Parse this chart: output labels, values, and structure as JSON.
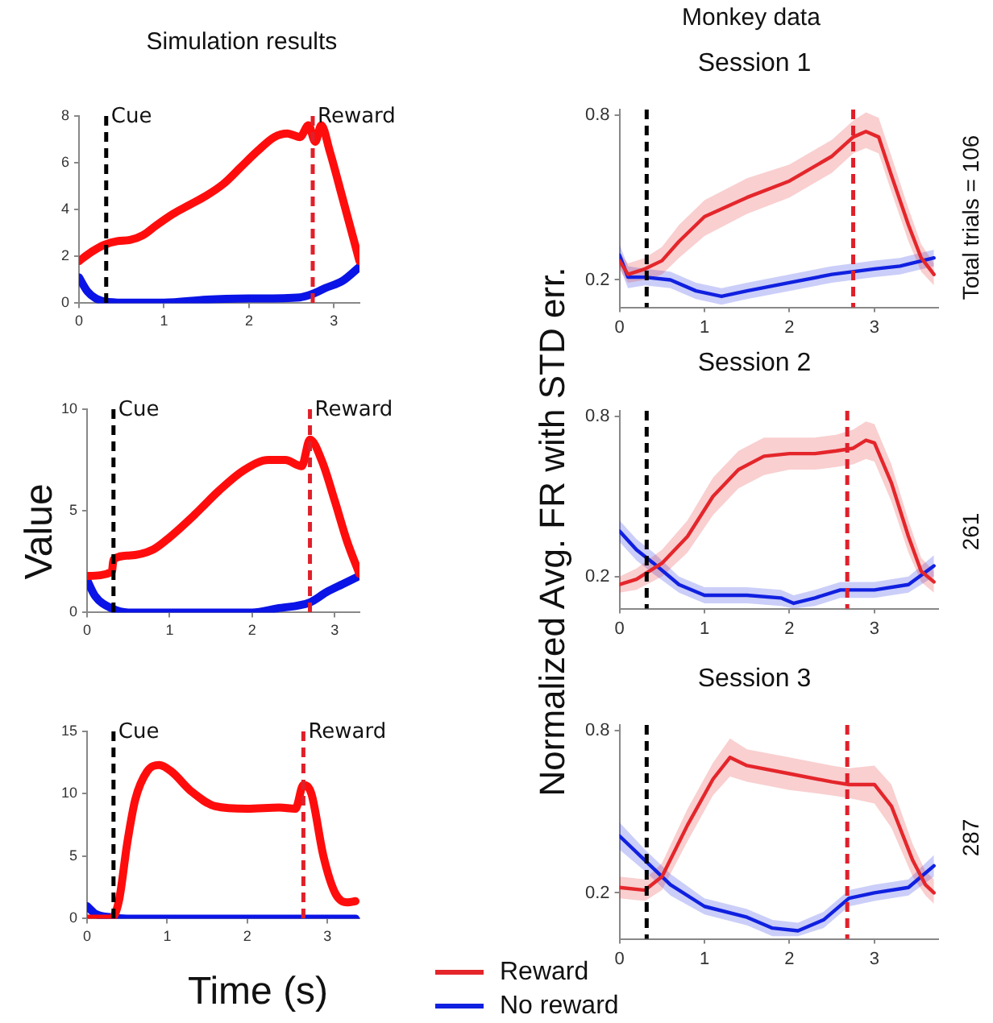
{
  "chart_data": [
    {
      "type": "line",
      "title": "Simulation results",
      "xlim": [
        0,
        3.3
      ],
      "xticks": [
        0,
        1,
        2,
        3
      ],
      "ylim": [
        0,
        8
      ],
      "yticks": [
        0,
        2,
        4,
        6,
        8
      ],
      "ref_lines": [
        {
          "axis": "x",
          "value": 0.32,
          "label": "Cue",
          "color": "#000000",
          "line_style": "dashed"
        },
        {
          "axis": "x",
          "value": 2.75,
          "label": "Reward",
          "color": "#e0202a",
          "line_style": "dashed"
        }
      ],
      "series": [
        {
          "color": "#ff0d0d",
          "x": [
            0,
            0.15,
            0.3,
            0.45,
            0.6,
            0.75,
            0.9,
            1.1,
            1.3,
            1.5,
            1.7,
            1.9,
            2.1,
            2.3,
            2.45,
            2.6,
            2.7,
            2.78,
            2.85,
            2.95,
            3.1,
            3.3
          ],
          "values": [
            1.8,
            2.2,
            2.5,
            2.65,
            2.7,
            2.9,
            3.3,
            3.8,
            4.2,
            4.6,
            5.1,
            5.8,
            6.5,
            7.1,
            7.25,
            7.1,
            7.6,
            6.9,
            7.6,
            6.5,
            4.5,
            1.8
          ]
        },
        {
          "color": "#0a14e6",
          "x": [
            0,
            0.1,
            0.2,
            0.35,
            0.6,
            1.0,
            1.5,
            2.0,
            2.6,
            2.75,
            2.9,
            3.1,
            3.3
          ],
          "values": [
            1.1,
            0.5,
            0.2,
            0.05,
            0.02,
            0.02,
            0.15,
            0.2,
            0.25,
            0.4,
            0.65,
            0.95,
            1.55
          ]
        }
      ]
    },
    {
      "type": "line",
      "ylabel": "Value",
      "xlim": [
        0,
        3.3
      ],
      "xticks": [
        0,
        1,
        2,
        3
      ],
      "ylim": [
        0,
        10
      ],
      "yticks": [
        0,
        5,
        10
      ],
      "ref_lines": [
        {
          "axis": "x",
          "value": 0.32,
          "label": "Cue",
          "color": "#000000",
          "line_style": "dashed"
        },
        {
          "axis": "x",
          "value": 2.7,
          "label": "Reward",
          "color": "#e0202a",
          "line_style": "dashed"
        }
      ],
      "series": [
        {
          "color": "#ff0d0d",
          "x": [
            0,
            0.3,
            0.32,
            0.5,
            0.8,
            1.0,
            1.3,
            1.6,
            1.9,
            2.2,
            2.4,
            2.6,
            2.7,
            2.85,
            3.0,
            3.15,
            3.3
          ],
          "values": [
            1.8,
            2.0,
            2.6,
            2.8,
            3.1,
            3.7,
            4.8,
            6.0,
            7.0,
            7.5,
            7.5,
            7.2,
            8.5,
            7.4,
            5.5,
            3.5,
            1.9
          ]
        },
        {
          "color": "#0a14e6",
          "x": [
            0,
            0.1,
            0.3,
            0.5,
            1.0,
            2.0,
            2.3,
            2.7,
            2.9,
            3.1,
            3.3
          ],
          "values": [
            1.6,
            0.8,
            0.2,
            0,
            0,
            0,
            0.2,
            0.5,
            1.0,
            1.4,
            1.8
          ]
        }
      ]
    },
    {
      "type": "line",
      "xlabel": "Time (s)",
      "xlim": [
        0,
        3.4
      ],
      "xticks": [
        0,
        1,
        2,
        3
      ],
      "ylim": [
        0,
        15
      ],
      "yticks": [
        0,
        5,
        10,
        15
      ],
      "ref_lines": [
        {
          "axis": "x",
          "value": 0.33,
          "label": "Cue",
          "color": "#000000",
          "line_style": "dashed"
        },
        {
          "axis": "x",
          "value": 2.7,
          "label": "Reward",
          "color": "#e0202a",
          "line_style": "dashed"
        }
      ],
      "series": [
        {
          "color": "#ff0d0d",
          "x": [
            0,
            0.3,
            0.4,
            0.5,
            0.6,
            0.75,
            0.9,
            1.05,
            1.3,
            1.6,
            2.0,
            2.4,
            2.6,
            2.7,
            2.8,
            2.95,
            3.1,
            3.25,
            3.35
          ],
          "values": [
            0,
            0,
            1.5,
            6,
            9.5,
            11.8,
            12.3,
            11.8,
            10.2,
            9.0,
            8.8,
            8.9,
            8.8,
            10.7,
            10.0,
            5,
            2.0,
            1.3,
            1.4
          ]
        },
        {
          "color": "#0a14e6",
          "x": [
            0,
            0.1,
            0.3,
            0.5,
            3.35
          ],
          "values": [
            1.0,
            0.4,
            0.1,
            0,
            0
          ]
        }
      ]
    },
    {
      "type": "line",
      "title": "Monkey data",
      "subtitle": "Session 1",
      "annotations": [
        "Total trials = 106"
      ],
      "xlim": [
        0,
        3.75
      ],
      "xticks": [
        0,
        1,
        2,
        3
      ],
      "ylim": [
        0.1,
        0.82
      ],
      "yticks": [
        0.2,
        0.8
      ],
      "ref_lines": [
        {
          "axis": "x",
          "value": 0.32,
          "color": "#000000",
          "line_style": "dashed"
        },
        {
          "axis": "x",
          "value": 2.75,
          "color": "#e0202a",
          "line_style": "dashed"
        }
      ],
      "series": [
        {
          "color": "#e4262b",
          "x": [
            0,
            0.1,
            0.3,
            0.5,
            0.7,
            1.0,
            1.5,
            2.0,
            2.5,
            2.75,
            2.9,
            3.05,
            3.2,
            3.4,
            3.55,
            3.7
          ],
          "values": [
            0.27,
            0.22,
            0.24,
            0.27,
            0.34,
            0.43,
            0.5,
            0.56,
            0.65,
            0.72,
            0.74,
            0.72,
            0.58,
            0.4,
            0.28,
            0.22
          ],
          "lower": [
            0.24,
            0.19,
            0.2,
            0.22,
            0.28,
            0.36,
            0.44,
            0.5,
            0.59,
            0.66,
            0.68,
            0.66,
            0.52,
            0.34,
            0.23,
            0.18
          ],
          "upper": [
            0.3,
            0.26,
            0.28,
            0.32,
            0.4,
            0.49,
            0.57,
            0.62,
            0.71,
            0.78,
            0.81,
            0.79,
            0.65,
            0.46,
            0.33,
            0.26
          ]
        },
        {
          "color": "#1020e0",
          "x": [
            0,
            0.1,
            0.3,
            0.6,
            0.9,
            1.2,
            1.5,
            2.0,
            2.5,
            3.0,
            3.3,
            3.7
          ],
          "values": [
            0.29,
            0.21,
            0.21,
            0.2,
            0.16,
            0.14,
            0.16,
            0.19,
            0.22,
            0.24,
            0.25,
            0.28
          ],
          "lower": [
            0.25,
            0.17,
            0.18,
            0.17,
            0.13,
            0.11,
            0.13,
            0.16,
            0.19,
            0.21,
            0.22,
            0.25
          ],
          "upper": [
            0.33,
            0.25,
            0.24,
            0.23,
            0.19,
            0.17,
            0.19,
            0.22,
            0.25,
            0.27,
            0.28,
            0.31
          ]
        }
      ]
    },
    {
      "type": "line",
      "subtitle": "Session 2",
      "ylabel": "Normalized Avg. FR with STD err.",
      "annotations": [
        "261"
      ],
      "xlim": [
        0,
        3.75
      ],
      "xticks": [
        0,
        1,
        2,
        3
      ],
      "ylim": [
        0.08,
        0.82
      ],
      "yticks": [
        0.2,
        0.8
      ],
      "ref_lines": [
        {
          "axis": "x",
          "value": 0.32,
          "color": "#000000",
          "line_style": "dashed"
        },
        {
          "axis": "x",
          "value": 2.68,
          "color": "#e0202a",
          "line_style": "dashed"
        }
      ],
      "series": [
        {
          "color": "#e4262b",
          "x": [
            0,
            0.2,
            0.5,
            0.8,
            1.1,
            1.4,
            1.7,
            2.0,
            2.3,
            2.55,
            2.75,
            2.9,
            3.0,
            3.2,
            3.4,
            3.55,
            3.7
          ],
          "values": [
            0.17,
            0.19,
            0.25,
            0.35,
            0.5,
            0.6,
            0.65,
            0.66,
            0.66,
            0.67,
            0.68,
            0.71,
            0.7,
            0.55,
            0.35,
            0.22,
            0.18
          ],
          "lower": [
            0.14,
            0.15,
            0.2,
            0.29,
            0.43,
            0.53,
            0.58,
            0.6,
            0.6,
            0.61,
            0.62,
            0.64,
            0.63,
            0.48,
            0.29,
            0.18,
            0.14
          ],
          "upper": [
            0.2,
            0.23,
            0.3,
            0.41,
            0.57,
            0.67,
            0.72,
            0.72,
            0.72,
            0.73,
            0.75,
            0.78,
            0.77,
            0.62,
            0.41,
            0.27,
            0.22
          ]
        },
        {
          "color": "#1020e0",
          "x": [
            0,
            0.2,
            0.4,
            0.7,
            1.0,
            1.5,
            1.9,
            2.05,
            2.3,
            2.6,
            3.0,
            3.4,
            3.7
          ],
          "values": [
            0.37,
            0.3,
            0.25,
            0.17,
            0.13,
            0.13,
            0.12,
            0.1,
            0.12,
            0.15,
            0.15,
            0.17,
            0.24
          ],
          "lower": [
            0.33,
            0.26,
            0.21,
            0.14,
            0.1,
            0.1,
            0.09,
            0.08,
            0.09,
            0.12,
            0.12,
            0.14,
            0.2
          ],
          "upper": [
            0.41,
            0.34,
            0.29,
            0.2,
            0.16,
            0.16,
            0.15,
            0.13,
            0.15,
            0.18,
            0.18,
            0.2,
            0.28
          ]
        }
      ]
    },
    {
      "type": "line",
      "subtitle": "Session 3",
      "annotations": [
        "287"
      ],
      "legend": "bottom left",
      "xlim": [
        0,
        3.75
      ],
      "xticks": [
        0,
        1,
        2,
        3
      ],
      "ylim": [
        0.03,
        0.82
      ],
      "yticks": [
        0.2,
        0.8
      ],
      "ref_lines": [
        {
          "axis": "x",
          "value": 0.32,
          "color": "#000000",
          "line_style": "dashed"
        },
        {
          "axis": "x",
          "value": 2.68,
          "color": "#e0202a",
          "line_style": "dashed"
        }
      ],
      "series": [
        {
          "name": "Reward",
          "color": "#e4262b",
          "x": [
            0,
            0.3,
            0.5,
            0.8,
            1.1,
            1.3,
            1.5,
            2.0,
            2.5,
            2.7,
            3.0,
            3.2,
            3.45,
            3.6,
            3.7
          ],
          "values": [
            0.22,
            0.21,
            0.26,
            0.45,
            0.62,
            0.7,
            0.67,
            0.64,
            0.61,
            0.6,
            0.6,
            0.52,
            0.32,
            0.23,
            0.2
          ],
          "lower": [
            0.18,
            0.17,
            0.21,
            0.39,
            0.56,
            0.63,
            0.61,
            0.58,
            0.56,
            0.55,
            0.53,
            0.44,
            0.26,
            0.19,
            0.16
          ],
          "upper": [
            0.26,
            0.25,
            0.31,
            0.51,
            0.68,
            0.77,
            0.73,
            0.7,
            0.67,
            0.66,
            0.67,
            0.6,
            0.38,
            0.28,
            0.25
          ]
        },
        {
          "name": "No reward",
          "color": "#1020e0",
          "x": [
            0,
            0.3,
            0.6,
            1.0,
            1.5,
            1.8,
            2.1,
            2.4,
            2.7,
            3.0,
            3.4,
            3.7
          ],
          "values": [
            0.41,
            0.32,
            0.23,
            0.15,
            0.11,
            0.07,
            0.06,
            0.1,
            0.18,
            0.2,
            0.22,
            0.3
          ],
          "lower": [
            0.36,
            0.28,
            0.19,
            0.12,
            0.08,
            0.04,
            0.04,
            0.07,
            0.15,
            0.17,
            0.19,
            0.26
          ],
          "upper": [
            0.46,
            0.36,
            0.27,
            0.18,
            0.14,
            0.1,
            0.09,
            0.13,
            0.21,
            0.23,
            0.25,
            0.34
          ]
        }
      ]
    }
  ]
}
